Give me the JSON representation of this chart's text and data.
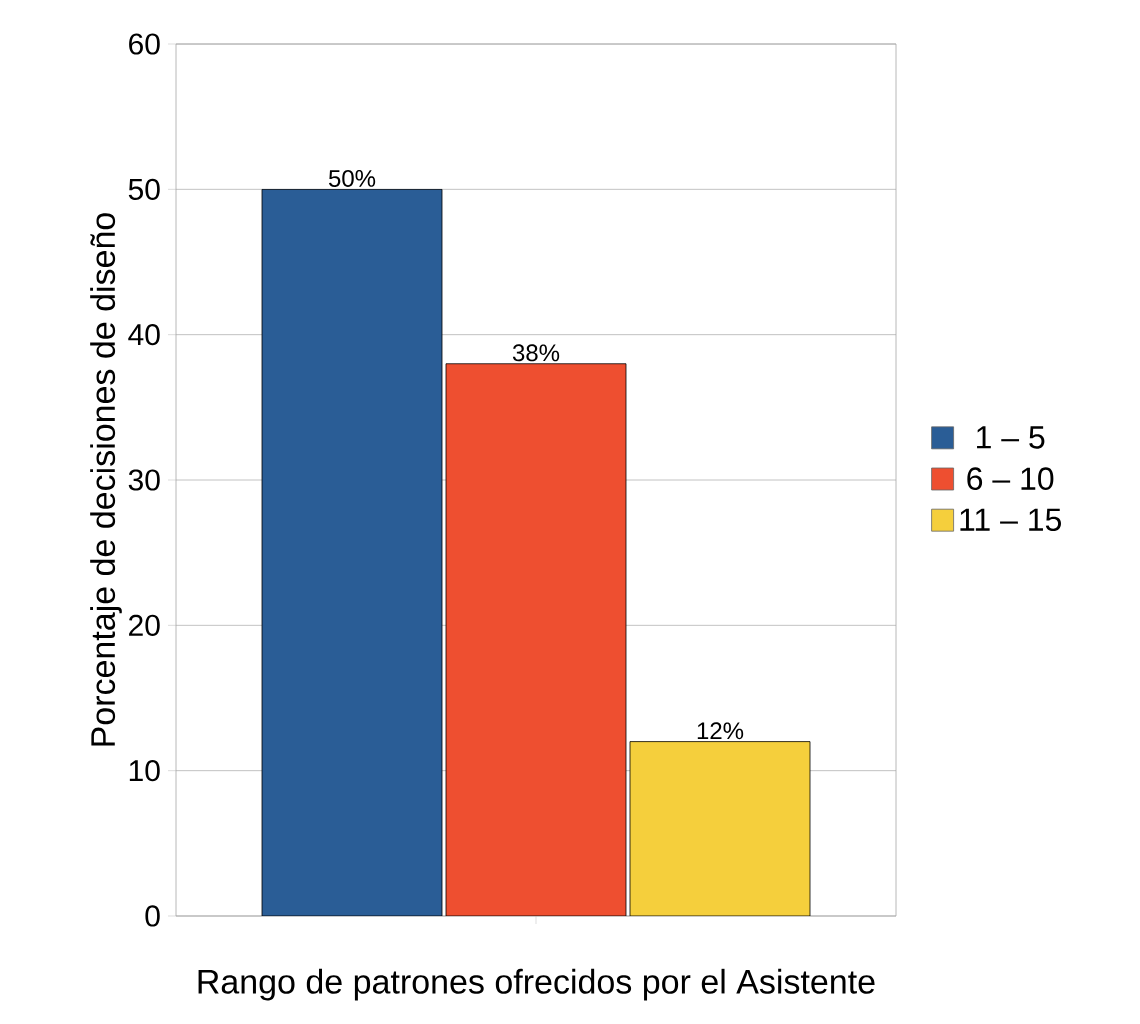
{
  "chart_data": {
    "type": "bar",
    "xlabel": "Rango de patrones ofrecidos por el Asistente",
    "ylabel": "Porcentaje de decisiones de diseño",
    "categories": [
      null
    ],
    "series": [
      {
        "name": "1 – 5",
        "color": "#2a5d96",
        "values": [
          50
        ],
        "value_labels": [
          "50%"
        ]
      },
      {
        "name": "6 – 10",
        "color": "#ee4f30",
        "values": [
          38
        ],
        "value_labels": [
          "38%"
        ]
      },
      {
        "name": "11 – 15",
        "color": "#f5cf3c",
        "values": [
          12
        ],
        "value_labels": [
          "12%"
        ]
      }
    ],
    "ylim": [
      0,
      60
    ],
    "yticks": [
      0,
      10,
      20,
      30,
      40,
      50,
      60
    ],
    "grid": "y",
    "legend": "right"
  }
}
